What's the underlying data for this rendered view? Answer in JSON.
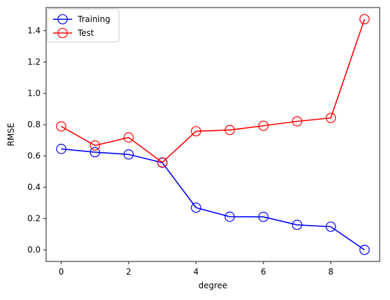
{
  "chart_data": {
    "type": "line",
    "title": "",
    "xlabel": "degree",
    "ylabel": "RMSE",
    "xlim": [
      -0.45,
      9.45
    ],
    "ylim": [
      -0.074,
      1.548
    ],
    "x_ticks": [
      0,
      2,
      4,
      6,
      8
    ],
    "y_ticks": [
      0.0,
      0.2,
      0.4,
      0.6,
      0.8,
      1.0,
      1.2,
      1.4
    ],
    "grid": false,
    "legend": {
      "position": "top-left"
    },
    "x": [
      0,
      1,
      2,
      3,
      4,
      5,
      6,
      7,
      8,
      9
    ],
    "series": [
      {
        "name": "Training",
        "color": "#0000ff",
        "marker": "open-circle",
        "values": [
          0.645,
          0.624,
          0.61,
          0.557,
          0.27,
          0.212,
          0.211,
          0.16,
          0.148,
          0.0
        ]
      },
      {
        "name": "Test",
        "color": "#ff0000",
        "marker": "open-circle",
        "values": [
          0.789,
          0.667,
          0.718,
          0.559,
          0.758,
          0.766,
          0.793,
          0.821,
          0.843,
          1.474
        ]
      }
    ]
  }
}
